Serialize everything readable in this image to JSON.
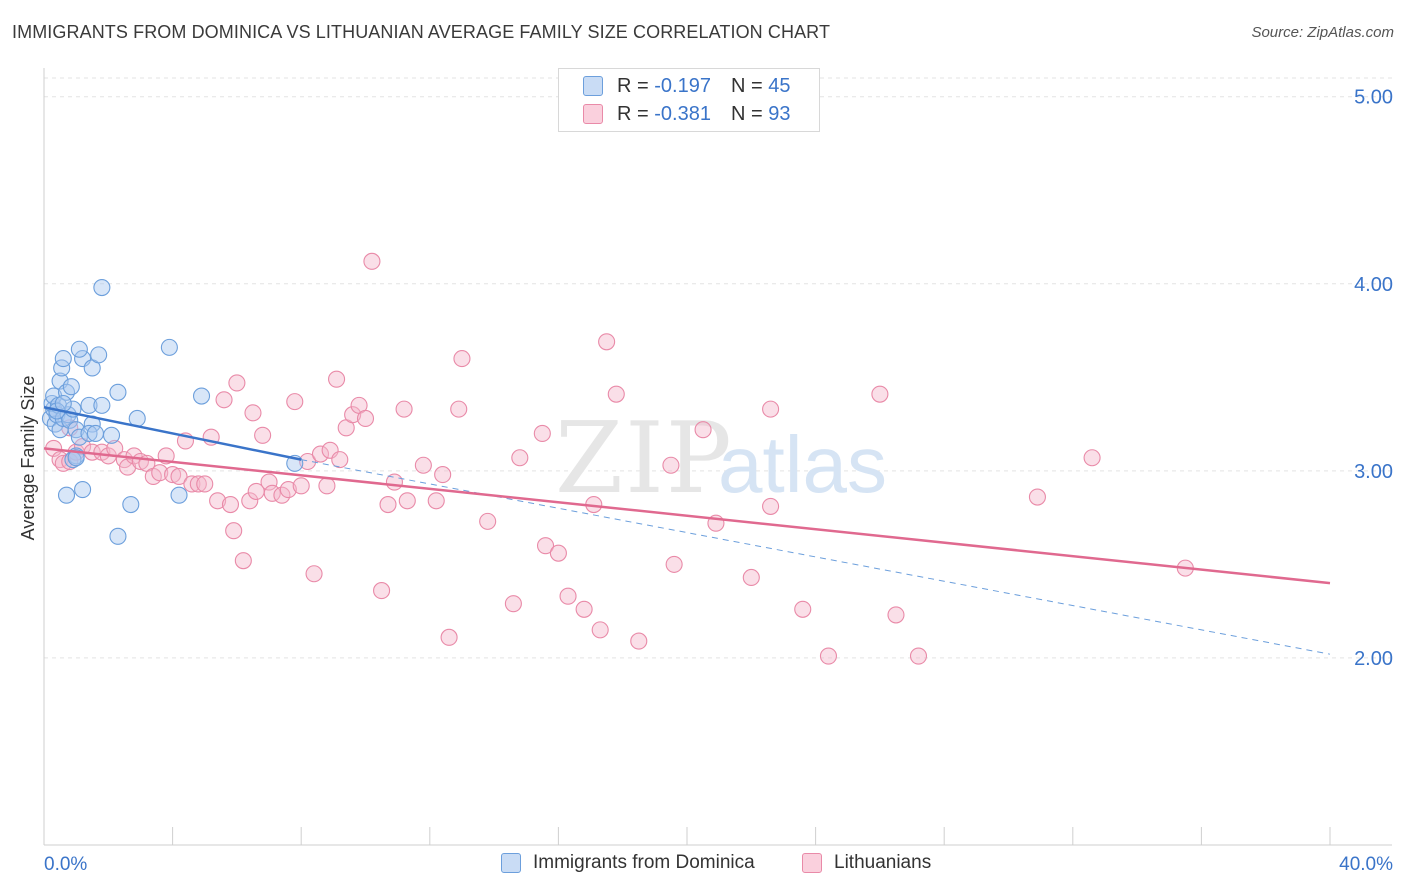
{
  "title": "IMMIGRANTS FROM DOMINICA VS LITHUANIAN AVERAGE FAMILY SIZE CORRELATION CHART",
  "source": "Source: ZipAtlas.com",
  "watermark": {
    "zip": "ZIP",
    "atlas": "atlas"
  },
  "legend": {
    "r_label": "R =",
    "n_label": "N =",
    "rows": [
      {
        "r": "-0.197",
        "n": "45",
        "color": "#a9c8ef"
      },
      {
        "r": "-0.381",
        "n": "93",
        "color": "#f5b8cb"
      }
    ]
  },
  "bottom_legend": [
    "Immigrants from Dominica",
    "Lithuanians"
  ],
  "colors": {
    "blue_fill": "#a9c8ef",
    "blue_stroke": "#6c9fdc",
    "blue_line": "#3a74c9",
    "pink_fill": "#f5b8cb",
    "pink_stroke": "#e98aa8",
    "pink_line": "#e0698f",
    "tick_label": "#3a74c9",
    "grid": "#e3e3e3"
  },
  "chart_data": {
    "type": "scatter",
    "title": "IMMIGRANTS FROM DOMINICA VS LITHUANIAN AVERAGE FAMILY SIZE CORRELATION CHART",
    "xlabel": "",
    "ylabel": "Average Family Size",
    "xlim": [
      0,
      40
    ],
    "ylim": [
      1.0,
      5.1
    ],
    "x_tick_labels": [
      "0.0%",
      "40.0%"
    ],
    "y_ticks": [
      2.0,
      3.0,
      4.0,
      5.0
    ],
    "y_tick_labels": [
      "2.00",
      "3.00",
      "4.00",
      "5.00"
    ],
    "grid": true,
    "legend_position": "top-center",
    "series": [
      {
        "name": "Immigrants from Dominica",
        "r": -0.197,
        "n": 45,
        "trend": {
          "x": [
            0.0,
            8.0
          ],
          "y": [
            3.34,
            3.06
          ]
        },
        "trend_extended": {
          "x": [
            8.0,
            40.0
          ],
          "y": [
            3.06,
            2.02
          ]
        },
        "points": [
          [
            0.2,
            3.28
          ],
          [
            0.3,
            3.33
          ],
          [
            0.25,
            3.36
          ],
          [
            0.35,
            3.25
          ],
          [
            0.4,
            3.3
          ],
          [
            0.3,
            3.4
          ],
          [
            0.5,
            3.22
          ],
          [
            0.45,
            3.35
          ],
          [
            0.6,
            3.28
          ],
          [
            0.5,
            3.48
          ],
          [
            0.55,
            3.55
          ],
          [
            0.6,
            3.6
          ],
          [
            0.7,
            3.42
          ],
          [
            0.75,
            3.3
          ],
          [
            0.8,
            3.27
          ],
          [
            0.9,
            3.33
          ],
          [
            0.85,
            3.45
          ],
          [
            1.0,
            3.08
          ],
          [
            0.9,
            3.06
          ],
          [
            1.0,
            3.22
          ],
          [
            1.1,
            3.18
          ],
          [
            1.2,
            3.6
          ],
          [
            1.1,
            3.65
          ],
          [
            1.4,
            3.35
          ],
          [
            1.5,
            3.25
          ],
          [
            1.4,
            3.2
          ],
          [
            1.5,
            3.55
          ],
          [
            1.6,
            3.2
          ],
          [
            1.7,
            3.62
          ],
          [
            1.8,
            3.35
          ],
          [
            1.8,
            3.98
          ],
          [
            2.1,
            3.19
          ],
          [
            2.3,
            3.42
          ],
          [
            2.3,
            2.65
          ],
          [
            2.7,
            2.82
          ],
          [
            2.9,
            3.28
          ],
          [
            3.9,
            3.66
          ],
          [
            4.2,
            2.87
          ],
          [
            4.9,
            3.4
          ],
          [
            7.8,
            3.04
          ],
          [
            0.7,
            2.87
          ],
          [
            1.2,
            2.9
          ],
          [
            0.4,
            3.32
          ],
          [
            0.6,
            3.36
          ],
          [
            1.0,
            3.07
          ]
        ]
      },
      {
        "name": "Lithuanians",
        "r": -0.381,
        "n": 93,
        "trend": {
          "x": [
            0.0,
            40.0
          ],
          "y": [
            3.12,
            2.4
          ]
        },
        "points": [
          [
            0.3,
            3.12
          ],
          [
            0.5,
            3.06
          ],
          [
            0.6,
            3.04
          ],
          [
            0.8,
            3.05
          ],
          [
            1.0,
            3.1
          ],
          [
            1.2,
            3.13
          ],
          [
            1.5,
            3.1
          ],
          [
            1.8,
            3.1
          ],
          [
            2.0,
            3.08
          ],
          [
            2.2,
            3.12
          ],
          [
            2.5,
            3.06
          ],
          [
            2.6,
            3.02
          ],
          [
            2.8,
            3.08
          ],
          [
            3.0,
            3.05
          ],
          [
            3.2,
            3.04
          ],
          [
            3.4,
            2.97
          ],
          [
            3.6,
            2.99
          ],
          [
            3.8,
            3.08
          ],
          [
            4.0,
            2.98
          ],
          [
            4.2,
            2.97
          ],
          [
            4.4,
            3.16
          ],
          [
            4.6,
            2.93
          ],
          [
            4.8,
            2.93
          ],
          [
            5.0,
            2.93
          ],
          [
            5.2,
            3.18
          ],
          [
            5.4,
            2.84
          ],
          [
            5.6,
            3.38
          ],
          [
            5.8,
            2.82
          ],
          [
            5.9,
            2.68
          ],
          [
            6.0,
            3.47
          ],
          [
            6.2,
            2.52
          ],
          [
            6.4,
            2.84
          ],
          [
            6.5,
            3.31
          ],
          [
            6.6,
            2.89
          ],
          [
            6.8,
            3.19
          ],
          [
            7.0,
            2.94
          ],
          [
            7.1,
            2.88
          ],
          [
            7.4,
            2.87
          ],
          [
            7.6,
            2.9
          ],
          [
            7.8,
            3.37
          ],
          [
            8.0,
            2.92
          ],
          [
            8.2,
            3.05
          ],
          [
            8.4,
            2.45
          ],
          [
            8.6,
            3.09
          ],
          [
            8.8,
            2.92
          ],
          [
            8.9,
            3.11
          ],
          [
            9.1,
            3.49
          ],
          [
            9.2,
            3.06
          ],
          [
            9.4,
            3.23
          ],
          [
            9.6,
            3.3
          ],
          [
            9.8,
            3.35
          ],
          [
            10.0,
            3.28
          ],
          [
            10.2,
            4.12
          ],
          [
            10.5,
            2.36
          ],
          [
            10.7,
            2.82
          ],
          [
            10.9,
            2.94
          ],
          [
            11.2,
            3.33
          ],
          [
            11.3,
            2.84
          ],
          [
            11.8,
            3.03
          ],
          [
            12.2,
            2.84
          ],
          [
            12.4,
            2.98
          ],
          [
            12.6,
            2.11
          ],
          [
            12.9,
            3.33
          ],
          [
            13.0,
            3.6
          ],
          [
            13.8,
            2.73
          ],
          [
            14.6,
            2.29
          ],
          [
            14.8,
            3.07
          ],
          [
            15.5,
            3.2
          ],
          [
            15.6,
            2.6
          ],
          [
            16.0,
            2.56
          ],
          [
            16.3,
            2.33
          ],
          [
            16.8,
            2.26
          ],
          [
            17.3,
            2.15
          ],
          [
            17.1,
            2.82
          ],
          [
            17.5,
            3.69
          ],
          [
            17.8,
            3.41
          ],
          [
            18.5,
            2.09
          ],
          [
            19.5,
            3.03
          ],
          [
            19.6,
            2.5
          ],
          [
            20.5,
            3.22
          ],
          [
            20.9,
            2.72
          ],
          [
            22.0,
            2.43
          ],
          [
            22.6,
            2.81
          ],
          [
            22.6,
            3.33
          ],
          [
            23.6,
            2.26
          ],
          [
            24.4,
            2.01
          ],
          [
            26.0,
            3.41
          ],
          [
            26.5,
            2.23
          ],
          [
            27.2,
            2.01
          ],
          [
            30.9,
            2.86
          ],
          [
            32.6,
            3.07
          ],
          [
            35.5,
            2.48
          ],
          [
            0.8,
            3.23
          ]
        ]
      }
    ]
  }
}
